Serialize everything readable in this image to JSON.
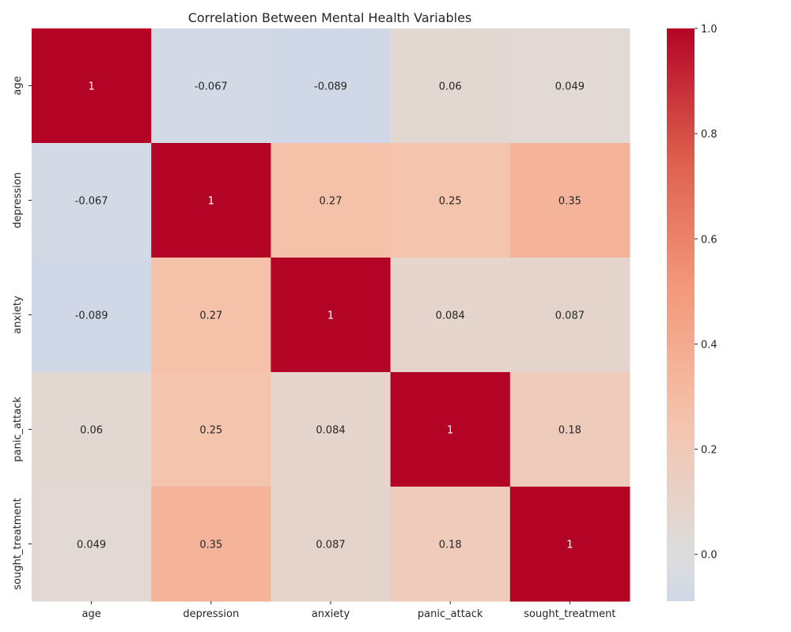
{
  "chart_data": {
    "type": "heatmap",
    "title": "Correlation Between Mental Health Variables",
    "x_categories": [
      "age",
      "depression",
      "anxiety",
      "panic_attack",
      "sought_treatment"
    ],
    "y_categories": [
      "age",
      "depression",
      "anxiety",
      "panic_attack",
      "sought_treatment"
    ],
    "values": [
      [
        1,
        -0.067,
        -0.089,
        0.06,
        0.049
      ],
      [
        -0.067,
        1,
        0.27,
        0.25,
        0.35
      ],
      [
        -0.089,
        0.27,
        1,
        0.084,
        0.087
      ],
      [
        0.06,
        0.25,
        0.084,
        1,
        0.18
      ],
      [
        0.049,
        0.35,
        0.087,
        0.18,
        1
      ]
    ],
    "annotations": [
      [
        "1",
        "-0.067",
        "-0.089",
        "0.06",
        "0.049"
      ],
      [
        "-0.067",
        "1",
        "0.27",
        "0.25",
        "0.35"
      ],
      [
        "-0.089",
        "0.27",
        "1",
        "0.084",
        "0.087"
      ],
      [
        "0.06",
        "0.25",
        "0.084",
        "1",
        "0.18"
      ],
      [
        "0.049",
        "0.35",
        "0.087",
        "0.18",
        "1"
      ]
    ],
    "colormap": "coolwarm",
    "center": 0,
    "colorbar": {
      "vmin": -0.089,
      "vmax": 1.0,
      "ticks": [
        0.0,
        0.2,
        0.4,
        0.6,
        0.8,
        1.0
      ],
      "tick_labels": [
        "0.0",
        "0.2",
        "0.4",
        "0.6",
        "0.8",
        "1.0"
      ]
    },
    "xlabel": "",
    "ylabel": ""
  }
}
